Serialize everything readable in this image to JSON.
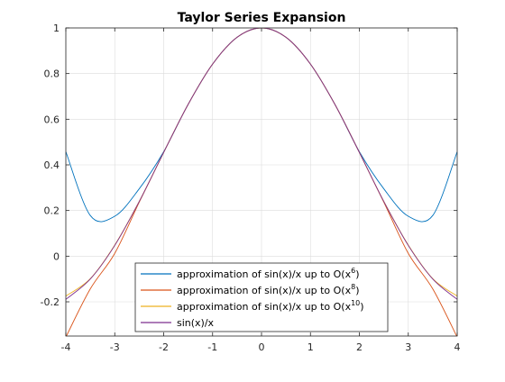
{
  "chart_data": {
    "type": "line",
    "title": "Taylor Series Expansion",
    "xlabel": "",
    "ylabel": "",
    "xlim": [
      -4,
      4
    ],
    "ylim": [
      -0.35,
      1
    ],
    "xticks": [
      -4,
      -3,
      -2,
      -1,
      0,
      1,
      2,
      3,
      4
    ],
    "xtick_labels": [
      "-4",
      "-3",
      "-2",
      "-1",
      "0",
      "1",
      "2",
      "3",
      "4"
    ],
    "yticks": [
      -0.2,
      0,
      0.2,
      0.4,
      0.6,
      0.8,
      1
    ],
    "ytick_labels": [
      "-0.2",
      "0",
      "0.2",
      "0.4",
      "0.6",
      "0.8",
      "1"
    ],
    "grid": true,
    "legend_position": "bottom-center",
    "x": [
      -4,
      -3.5,
      -3,
      -2.5,
      -2,
      -1.5,
      -1,
      -0.5,
      0,
      0.5,
      1,
      1.5,
      2,
      2.5,
      3,
      3.5,
      4
    ],
    "series": [
      {
        "legend_prefix": "approximation of sin(x)/x up to O(x",
        "legend_exponent": "6",
        "legend_suffix": ")",
        "color": "#0072BD",
        "values": [
          0.4578,
          0.1782,
          0.175,
          0.2951,
          0.4578,
          0.6653,
          0.8417,
          0.9589,
          1,
          0.9589,
          0.8417,
          0.6653,
          0.4578,
          0.2951,
          0.175,
          0.1782,
          0.4578
        ]
      },
      {
        "legend_prefix": "approximation of sin(x)/x up to O(x",
        "legend_exponent": "8",
        "legend_suffix": ")",
        "color": "#D95319",
        "values": [
          -0.3549,
          -0.1434,
          0.0123,
          0.2365,
          0.4546,
          0.665,
          0.8415,
          0.9589,
          1,
          0.9589,
          0.8415,
          0.665,
          0.4546,
          0.2365,
          0.0123,
          -0.1434,
          -0.3549
        ]
      },
      {
        "legend_prefix": "approximation of sin(x)/x up to O(x",
        "legend_exponent": "10",
        "legend_suffix": ")",
        "color": "#EDB120",
        "values": [
          -0.1749,
          -0.0985,
          0.0489,
          0.2396,
          0.4546,
          0.665,
          0.8415,
          0.9589,
          1,
          0.9589,
          0.8415,
          0.665,
          0.4546,
          0.2396,
          0.0489,
          -0.0985,
          -0.1749
        ]
      },
      {
        "legend_prefix": "sin(x)/x",
        "legend_exponent": "",
        "legend_suffix": "",
        "color": "#7E2F8E",
        "values": [
          -0.1892,
          -0.1002,
          0.047,
          0.2394,
          0.4546,
          0.665,
          0.8415,
          0.9589,
          1,
          0.9589,
          0.8415,
          0.665,
          0.4546,
          0.2394,
          0.047,
          -0.1002,
          -0.1892
        ]
      }
    ]
  }
}
